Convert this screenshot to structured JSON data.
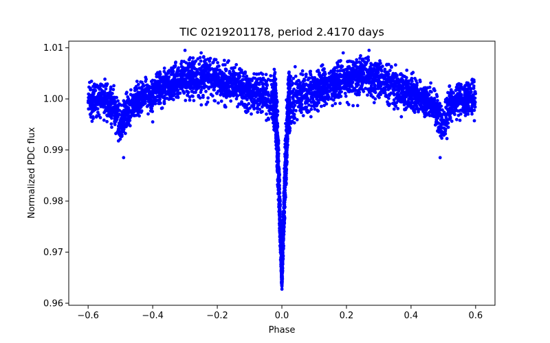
{
  "chart_data": {
    "type": "scatter",
    "title": "TIC 0219201178, period 2.4170 days",
    "xlabel": "Phase",
    "ylabel": "Normalized PDC flux",
    "xlim": [
      -0.66,
      0.66
    ],
    "ylim": [
      0.9596,
      1.0113
    ],
    "x_ticks": [
      -0.6,
      -0.4,
      -0.2,
      0.0,
      0.2,
      0.4,
      0.6
    ],
    "x_tick_labels": [
      "−0.6",
      "−0.4",
      "−0.2",
      "0.0",
      "0.2",
      "0.4",
      "0.6"
    ],
    "y_ticks": [
      0.96,
      0.97,
      0.98,
      0.99,
      1.0,
      1.01
    ],
    "y_tick_labels": [
      "0.96",
      "0.97",
      "0.98",
      "0.99",
      "1.00",
      "1.01"
    ],
    "grid": false,
    "legend": "none",
    "series": [
      {
        "name": "PDC flux",
        "color": "#0000ff",
        "description": "phase-folded light curve: dense noisy band near 1.000, primary eclipse at phase 0.0 reaching ~0.962, secondary eclipses at phase ±0.5 reaching ~0.990",
        "envelope_x": [
          -0.6,
          -0.55,
          -0.52,
          -0.5,
          -0.48,
          -0.45,
          -0.4,
          -0.3,
          -0.25,
          -0.2,
          -0.1,
          -0.05,
          -0.02,
          -0.01,
          0.0,
          0.01,
          0.02,
          0.05,
          0.1,
          0.2,
          0.25,
          0.3,
          0.4,
          0.45,
          0.48,
          0.5,
          0.52,
          0.55,
          0.6
        ],
        "envelope_mid": [
          1.0,
          1.0,
          0.9985,
          0.9945,
          0.9975,
          0.9995,
          1.001,
          1.004,
          1.0045,
          1.004,
          1.0015,
          1.001,
          0.999,
          0.985,
          0.9645,
          0.985,
          0.999,
          1.001,
          1.0015,
          1.004,
          1.0045,
          1.004,
          1.001,
          0.9995,
          0.9975,
          0.9945,
          0.9985,
          1.0,
          1.0
        ],
        "envelope_lo": [
          0.9955,
          0.9955,
          0.9935,
          0.99,
          0.9935,
          0.996,
          0.997,
          0.9985,
          0.9985,
          0.9985,
          0.997,
          0.996,
          0.993,
          0.978,
          0.962,
          0.978,
          0.993,
          0.996,
          0.997,
          0.9985,
          0.9985,
          0.9985,
          0.997,
          0.996,
          0.9935,
          0.99,
          0.9935,
          0.9955,
          0.9955
        ],
        "envelope_hi": [
          1.004,
          1.004,
          1.003,
          0.9985,
          1.002,
          1.004,
          1.0055,
          1.008,
          1.0085,
          1.008,
          1.0065,
          1.0065,
          1.007,
          0.995,
          0.968,
          0.995,
          1.008,
          1.0065,
          1.0065,
          1.008,
          1.0085,
          1.008,
          1.0055,
          1.004,
          1.002,
          0.9985,
          1.003,
          1.004,
          1.004
        ],
        "outliers_x": [
          -0.3,
          0.27,
          -0.25,
          0.19,
          0.49,
          -0.49,
          0.09,
          0.37,
          -0.4,
          -0.09
        ],
        "outliers_y": [
          1.0095,
          1.0095,
          1.009,
          1.009,
          0.9885,
          0.9885,
          0.9965,
          0.9965,
          0.9955,
          0.9985
        ]
      }
    ]
  }
}
